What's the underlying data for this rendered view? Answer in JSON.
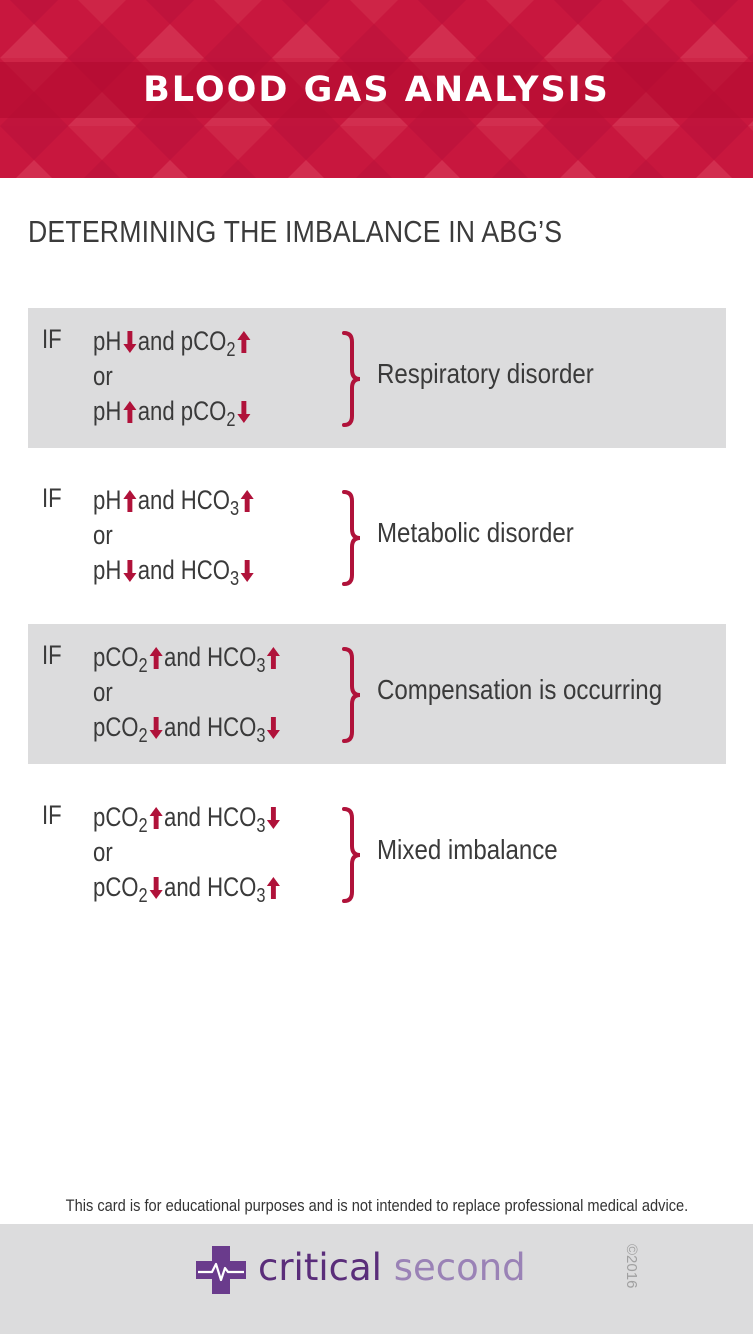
{
  "header": {
    "title": "BLOOD GAS ANALYSIS"
  },
  "subtitle": "DETERMINING THE IMBALANCE IN ABG’S",
  "colors": {
    "accent": "#c8173e",
    "arrow": "#b0123a",
    "shaded_row": "#dcdcdd",
    "brand_dark": "#5a2d7a",
    "brand_light": "#9a82b6"
  },
  "if_label": "IF",
  "rows": [
    {
      "line1": {
        "a": "pH",
        "a_sub": "",
        "a_dir": "down",
        "mid": "and pCO",
        "b_sub": "2",
        "b_dir": "up"
      },
      "or": "or",
      "line2": {
        "a": "pH",
        "a_sub": "",
        "a_dir": "up",
        "mid": "and pCO",
        "b_sub": "2",
        "b_dir": "down"
      },
      "result": "Respiratory disorder"
    },
    {
      "line1": {
        "a": "pH",
        "a_sub": "",
        "a_dir": "up",
        "mid": "and HCO",
        "b_sub": "3",
        "b_dir": "up"
      },
      "or": "or",
      "line2": {
        "a": "pH",
        "a_sub": "",
        "a_dir": "down",
        "mid": "and HCO",
        "b_sub": "3",
        "b_dir": "down"
      },
      "result": "Metabolic disorder"
    },
    {
      "line1": {
        "a": "pCO",
        "a_sub": "2",
        "a_dir": "up",
        "mid": "and HCO",
        "b_sub": "3",
        "b_dir": "up"
      },
      "or": "or",
      "line2": {
        "a": "pCO",
        "a_sub": "2",
        "a_dir": "down",
        "mid": "and HCO",
        "b_sub": "3",
        "b_dir": "down"
      },
      "result": "Compensation is occurring"
    },
    {
      "line1": {
        "a": "pCO",
        "a_sub": "2",
        "a_dir": "up",
        "mid": "and HCO",
        "b_sub": "3",
        "b_dir": "down"
      },
      "or": "or",
      "line2": {
        "a": "pCO",
        "a_sub": "2",
        "a_dir": "down",
        "mid": "and HCO",
        "b_sub": "3",
        "b_dir": "up"
      },
      "result": "Mixed imbalance"
    }
  ],
  "disclaimer": "This card is for educational purposes and is not intended to replace professional medical advice.",
  "brand": {
    "word1": "critical",
    "word2": "second",
    "logo_icon": "medical-cross-heartbeat-icon"
  },
  "copyright": "©2016"
}
